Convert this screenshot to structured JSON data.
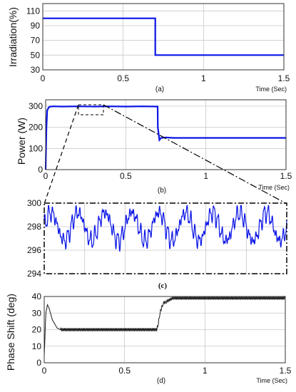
{
  "colors": {
    "main_series": "#0a14e6",
    "phase_series": "#1a1a1a",
    "annotation": "#000000"
  },
  "chart_data": [
    {
      "id": "a",
      "type": "line",
      "caption": "(a)",
      "ylabel": "Irradiation(%)",
      "xlabel": "Time (Sec)",
      "xlim": [
        0,
        1.5
      ],
      "ylim": [
        30,
        120
      ],
      "xticks": [
        0,
        0.5,
        1,
        1.5
      ],
      "xtick_labels": [
        "0",
        "0.5",
        "1",
        "1.5"
      ],
      "yticks": [
        30,
        50,
        70,
        90,
        110
      ],
      "ytick_labels": [
        "30",
        "50",
        "70",
        "90",
        "110"
      ],
      "grid": true,
      "series": [
        {
          "x": [
            0,
            0.7,
            0.7,
            1.5
          ],
          "y": [
            100,
            100,
            50,
            50
          ]
        }
      ]
    },
    {
      "id": "b",
      "type": "line",
      "caption": "(b)",
      "ylabel": "Power (W)",
      "xlabel": "Time (Sec)",
      "xlim": [
        0,
        1.5
      ],
      "ylim": [
        0,
        330
      ],
      "xticks": [
        0,
        0.5,
        1,
        1.5
      ],
      "xtick_labels": [
        "0",
        "0.5",
        "1",
        "1.5"
      ],
      "yticks": [
        0,
        100,
        200,
        300
      ],
      "ytick_labels": [
        "0",
        "100",
        "200",
        "300"
      ],
      "grid": true,
      "series": [
        {
          "x": [
            0,
            0.005,
            0.01,
            0.02,
            0.03,
            0.05,
            0.1,
            0.2,
            0.3,
            0.4,
            0.5,
            0.6,
            0.699,
            0.7,
            0.71,
            0.72,
            0.75,
            0.8,
            1.0,
            1.2,
            1.5
          ],
          "y": [
            0,
            200,
            280,
            295,
            298,
            299,
            298,
            299,
            298,
            299,
            298,
            299,
            298,
            200,
            140,
            150,
            152,
            150,
            150,
            150,
            150
          ]
        }
      ]
    },
    {
      "id": "c",
      "type": "line",
      "caption": "(c)",
      "ylim": [
        294,
        300
      ],
      "yticks": [
        294,
        296,
        298,
        300
      ],
      "ytick_labels": [
        "294",
        "296",
        "298",
        "300"
      ],
      "grid": true,
      "series": [
        {
          "description_of_signal": "",
          "mean": 298,
          "amplitude": 1.2,
          "cycles": 9
        }
      ]
    },
    {
      "id": "d",
      "type": "line",
      "caption": "(d)",
      "ylabel": "Phase Shift (deg)",
      "xlabel": "Time (Sec)",
      "xlim": [
        0,
        1.5
      ],
      "ylim": [
        0,
        40
      ],
      "xticks": [
        0,
        0.5,
        1,
        1.5
      ],
      "xtick_labels": [
        "0",
        "0.5",
        "1",
        "1.5"
      ],
      "yticks": [
        0,
        10,
        20,
        30,
        40
      ],
      "ytick_labels": [
        "0",
        "10",
        "20",
        "30",
        "40"
      ],
      "grid": true,
      "series": [
        {
          "x": [
            0,
            0.01,
            0.02,
            0.03,
            0.05,
            0.08,
            0.1,
            0.3,
            0.5,
            0.7,
            0.71,
            0.72,
            0.74,
            0.76,
            0.8,
            1.0,
            1.2,
            1.5
          ],
          "y": [
            4,
            30,
            35,
            33,
            26,
            21,
            20,
            20,
            20,
            20,
            24,
            30,
            36,
            37,
            39,
            39,
            39,
            39
          ]
        }
      ]
    }
  ]
}
